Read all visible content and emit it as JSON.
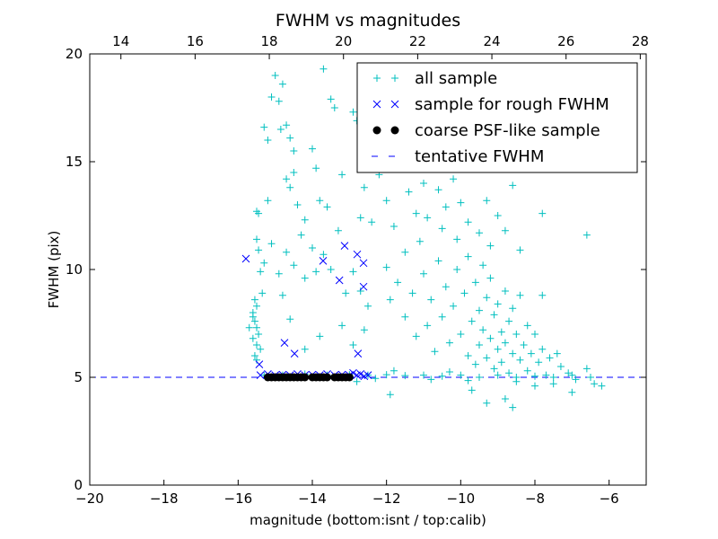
{
  "chart_data": {
    "type": "scatter",
    "title": "FWHM vs magnitudes",
    "xlabel": "magnitude (bottom:isnt / top:calib)",
    "ylabel": "FWHM (pix)",
    "xlim": [
      -20,
      -5
    ],
    "ylim": [
      0,
      20
    ],
    "top_xlim": [
      13.16,
      28.16
    ],
    "xticks": [
      -20,
      -18,
      -16,
      -14,
      -12,
      -10,
      -8,
      -6
    ],
    "xtick_labels": [
      "−20",
      "−18",
      "−16",
      "−14",
      "−12",
      "−10",
      "−8",
      "−6"
    ],
    "top_xticks": [
      14,
      16,
      18,
      20,
      22,
      24,
      26,
      28
    ],
    "top_xtick_labels": [
      "14",
      "16",
      "18",
      "20",
      "22",
      "24",
      "26",
      "28"
    ],
    "yticks": [
      0,
      5,
      10,
      15,
      20
    ],
    "ytick_labels": [
      "0",
      "5",
      "10",
      "15",
      "20"
    ],
    "legend_position": "top-right",
    "series": [
      {
        "name": "all sample",
        "marker": "+",
        "color": "#00bfbf",
        "points": [
          [
            -15.5,
            12.7
          ],
          [
            -15.45,
            12.6
          ],
          [
            -15.5,
            11.4
          ],
          [
            -15.45,
            10.9
          ],
          [
            -15.4,
            9.9
          ],
          [
            -15.55,
            8.6
          ],
          [
            -15.5,
            8.3
          ],
          [
            -15.6,
            8.0
          ],
          [
            -15.55,
            7.6
          ],
          [
            -15.5,
            7.3
          ],
          [
            -15.45,
            7.0
          ],
          [
            -15.6,
            6.8
          ],
          [
            -15.5,
            6.5
          ],
          [
            -15.4,
            6.3
          ],
          [
            -15.55,
            6.0
          ],
          [
            -15.5,
            5.8
          ],
          [
            -15.6,
            7.8
          ],
          [
            -15.7,
            7.3
          ],
          [
            -15.35,
            8.9
          ],
          [
            -15.3,
            10.3
          ],
          [
            -15.3,
            16.6
          ],
          [
            -15.2,
            16.0
          ],
          [
            -15.1,
            18.0
          ],
          [
            -15.0,
            19.0
          ],
          [
            -14.8,
            18.6
          ],
          [
            -14.9,
            17.8
          ],
          [
            -14.85,
            16.5
          ],
          [
            -14.7,
            16.7
          ],
          [
            -14.6,
            16.1
          ],
          [
            -14.5,
            15.5
          ],
          [
            -14.7,
            14.2
          ],
          [
            -14.5,
            14.5
          ],
          [
            -14.6,
            13.8
          ],
          [
            -14.4,
            13.0
          ],
          [
            -14.2,
            12.3
          ],
          [
            -14.0,
            15.6
          ],
          [
            -13.9,
            14.7
          ],
          [
            -13.7,
            19.3
          ],
          [
            -13.5,
            17.9
          ],
          [
            -13.4,
            17.5
          ],
          [
            -13.8,
            13.2
          ],
          [
            -13.6,
            12.9
          ],
          [
            -13.2,
            14.4
          ],
          [
            -12.9,
            17.3
          ],
          [
            -12.8,
            16.9
          ],
          [
            -12.6,
            13.8
          ],
          [
            -12.7,
            12.4
          ],
          [
            -12.4,
            12.2
          ],
          [
            -15.2,
            13.2
          ],
          [
            -15.1,
            11.2
          ],
          [
            -14.9,
            9.8
          ],
          [
            -14.8,
            8.8
          ],
          [
            -14.7,
            10.8
          ],
          [
            -14.5,
            10.2
          ],
          [
            -14.3,
            11.6
          ],
          [
            -14.2,
            9.6
          ],
          [
            -14.0,
            11.0
          ],
          [
            -13.9,
            9.9
          ],
          [
            -13.7,
            10.7
          ],
          [
            -13.5,
            10.0
          ],
          [
            -13.3,
            11.8
          ],
          [
            -13.1,
            8.9
          ],
          [
            -12.9,
            9.9
          ],
          [
            -12.7,
            9.0
          ],
          [
            -12.5,
            8.3
          ],
          [
            -14.6,
            7.7
          ],
          [
            -14.2,
            6.3
          ],
          [
            -13.8,
            6.9
          ],
          [
            -13.2,
            7.4
          ],
          [
            -12.9,
            6.5
          ],
          [
            -12.6,
            7.2
          ],
          [
            -12.3,
            15.9
          ],
          [
            -12.2,
            14.4
          ],
          [
            -12.0,
            13.2
          ],
          [
            -11.8,
            12.0
          ],
          [
            -11.6,
            14.9
          ],
          [
            -11.5,
            10.8
          ],
          [
            -11.4,
            13.6
          ],
          [
            -11.2,
            12.6
          ],
          [
            -11.1,
            11.3
          ],
          [
            -11.0,
            14.0
          ],
          [
            -10.9,
            12.4
          ],
          [
            -10.8,
            15.4
          ],
          [
            -10.6,
            13.7
          ],
          [
            -10.5,
            11.9
          ],
          [
            -10.4,
            12.9
          ],
          [
            -10.2,
            14.2
          ],
          [
            -10.1,
            11.4
          ],
          [
            -10.0,
            13.1
          ],
          [
            -9.8,
            12.2
          ],
          [
            -9.6,
            14.8
          ],
          [
            -9.5,
            11.7
          ],
          [
            -9.3,
            13.2
          ],
          [
            -9.2,
            11.1
          ],
          [
            -9.0,
            12.5
          ],
          [
            -8.8,
            11.8
          ],
          [
            -8.6,
            13.9
          ],
          [
            -8.4,
            10.9
          ],
          [
            -7.8,
            12.6
          ],
          [
            -6.6,
            11.6
          ],
          [
            -12.0,
            10.1
          ],
          [
            -11.9,
            8.6
          ],
          [
            -11.7,
            9.4
          ],
          [
            -11.5,
            7.8
          ],
          [
            -11.3,
            8.9
          ],
          [
            -11.2,
            6.9
          ],
          [
            -11.0,
            9.8
          ],
          [
            -10.9,
            7.4
          ],
          [
            -10.8,
            8.6
          ],
          [
            -10.7,
            6.2
          ],
          [
            -10.6,
            10.4
          ],
          [
            -10.5,
            7.8
          ],
          [
            -10.4,
            9.2
          ],
          [
            -10.3,
            6.6
          ],
          [
            -10.2,
            8.3
          ],
          [
            -10.1,
            10.0
          ],
          [
            -10.0,
            7.0
          ],
          [
            -9.9,
            8.9
          ],
          [
            -9.8,
            6.0
          ],
          [
            -9.8,
            10.6
          ],
          [
            -9.7,
            7.6
          ],
          [
            -9.6,
            9.4
          ],
          [
            -9.6,
            5.6
          ],
          [
            -9.5,
            8.1
          ],
          [
            -9.5,
            6.5
          ],
          [
            -9.4,
            10.2
          ],
          [
            -9.4,
            7.2
          ],
          [
            -9.3,
            5.9
          ],
          [
            -9.3,
            8.7
          ],
          [
            -9.2,
            6.8
          ],
          [
            -9.2,
            9.6
          ],
          [
            -9.1,
            5.4
          ],
          [
            -9.1,
            7.9
          ],
          [
            -9.0,
            6.3
          ],
          [
            -9.0,
            8.4
          ],
          [
            -8.9,
            7.1
          ],
          [
            -8.9,
            5.7
          ],
          [
            -8.8,
            9.0
          ],
          [
            -8.8,
            6.6
          ],
          [
            -8.7,
            7.6
          ],
          [
            -8.7,
            5.2
          ],
          [
            -8.6,
            8.2
          ],
          [
            -8.6,
            6.1
          ],
          [
            -8.5,
            7.0
          ],
          [
            -8.5,
            4.8
          ],
          [
            -8.4,
            5.8
          ],
          [
            -8.4,
            8.8
          ],
          [
            -8.3,
            6.5
          ],
          [
            -8.2,
            7.4
          ],
          [
            -8.2,
            5.3
          ],
          [
            -8.1,
            6.1
          ],
          [
            -8.0,
            4.6
          ],
          [
            -8.0,
            7.0
          ],
          [
            -7.9,
            5.7
          ],
          [
            -7.8,
            6.3
          ],
          [
            -7.8,
            8.8
          ],
          [
            -7.7,
            5.1
          ],
          [
            -7.6,
            5.9
          ],
          [
            -7.5,
            4.7
          ],
          [
            -7.4,
            6.1
          ],
          [
            -7.3,
            5.5
          ],
          [
            -7.1,
            5.2
          ],
          [
            -7.0,
            4.3
          ],
          [
            -6.9,
            4.9
          ],
          [
            -6.6,
            5.4
          ],
          [
            -6.4,
            4.7
          ],
          [
            -6.2,
            4.6
          ],
          [
            -8.8,
            4.0
          ],
          [
            -9.3,
            3.8
          ],
          [
            -8.6,
            3.6
          ],
          [
            -9.7,
            4.4
          ],
          [
            -11.9,
            4.2
          ],
          [
            -12.8,
            4.8
          ],
          [
            -15.3,
            5.1
          ],
          [
            -14.8,
            5.1
          ],
          [
            -14.2,
            5.15
          ],
          [
            -13.6,
            5.1
          ],
          [
            -13.0,
            5.12
          ],
          [
            -12.5,
            5.1
          ],
          [
            -12.0,
            5.12
          ],
          [
            -11.5,
            5.08
          ],
          [
            -11.0,
            5.1
          ],
          [
            -10.5,
            5.05
          ],
          [
            -10.0,
            5.1
          ],
          [
            -9.5,
            5.0
          ],
          [
            -9.0,
            5.1
          ],
          [
            -8.5,
            5.0
          ],
          [
            -8.0,
            5.05
          ],
          [
            -7.5,
            5.0
          ],
          [
            -7.0,
            5.1
          ],
          [
            -6.5,
            5.0
          ],
          [
            -11.8,
            5.3
          ],
          [
            -10.8,
            4.9
          ],
          [
            -10.3,
            5.25
          ],
          [
            -9.8,
            4.85
          ],
          [
            -12.3,
            4.95
          ]
        ]
      },
      {
        "name": "sample for rough FWHM",
        "marker": "x",
        "color": "#0000ff",
        "points": [
          [
            -15.79,
            10.5
          ],
          [
            -14.75,
            6.6
          ],
          [
            -14.48,
            6.1
          ],
          [
            -13.71,
            10.4
          ],
          [
            -13.27,
            9.5
          ],
          [
            -13.13,
            11.1
          ],
          [
            -12.79,
            10.7
          ],
          [
            -12.62,
            10.3
          ],
          [
            -12.62,
            9.2
          ],
          [
            -12.77,
            6.1
          ],
          [
            -15.43,
            5.6
          ],
          [
            -15.4,
            5.1
          ],
          [
            -15.2,
            5.15
          ],
          [
            -15.0,
            5.1
          ],
          [
            -14.8,
            5.12
          ],
          [
            -14.6,
            5.1
          ],
          [
            -14.4,
            5.15
          ],
          [
            -14.2,
            5.1
          ],
          [
            -14.0,
            5.12
          ],
          [
            -13.8,
            5.1
          ],
          [
            -13.6,
            5.15
          ],
          [
            -13.4,
            5.1
          ],
          [
            -13.2,
            5.12
          ],
          [
            -13.0,
            5.1
          ],
          [
            -12.9,
            5.2
          ],
          [
            -12.8,
            5.1
          ],
          [
            -12.7,
            5.15
          ],
          [
            -12.6,
            5.05
          ],
          [
            -12.5,
            5.1
          ]
        ]
      },
      {
        "name": "coarse PSF-like sample",
        "marker": "o",
        "color": "#000000",
        "points": [
          [
            -15.2,
            5.0
          ],
          [
            -15.1,
            5.0
          ],
          [
            -15.0,
            5.0
          ],
          [
            -14.9,
            5.0
          ],
          [
            -14.8,
            5.0
          ],
          [
            -14.7,
            5.0
          ],
          [
            -14.6,
            5.0
          ],
          [
            -14.5,
            5.0
          ],
          [
            -14.4,
            5.0
          ],
          [
            -14.3,
            5.0
          ],
          [
            -14.2,
            5.0
          ],
          [
            -14.0,
            5.0
          ],
          [
            -13.9,
            5.0
          ],
          [
            -13.8,
            5.0
          ],
          [
            -13.7,
            5.0
          ],
          [
            -13.6,
            5.0
          ],
          [
            -13.4,
            5.0
          ],
          [
            -13.3,
            5.0
          ],
          [
            -13.2,
            5.0
          ],
          [
            -13.1,
            5.0
          ],
          [
            -13.0,
            5.0
          ]
        ]
      },
      {
        "name": "tentative FWHM",
        "marker": "dashed-line",
        "color": "#0000ff",
        "y": 5.0
      }
    ]
  }
}
